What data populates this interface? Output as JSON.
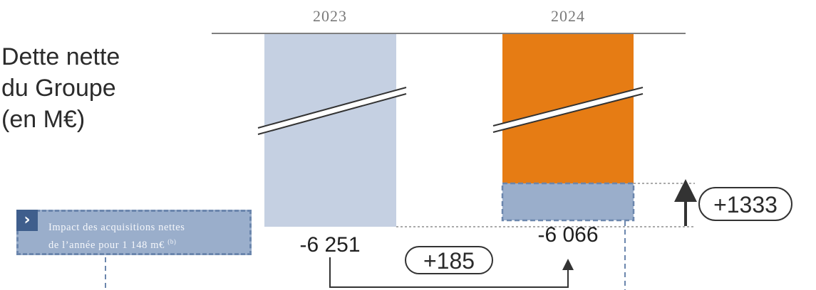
{
  "title_lines": [
    "Dette nette",
    "du Groupe",
    "(en M€)"
  ],
  "note": {
    "icon": "chevron-right-icon",
    "line1": "Impact des acquisitions nettes",
    "line2": "de l’année pour 1 148 m€",
    "footnote": "(b)"
  },
  "colors": {
    "bar_2023": "#c5d0e2",
    "bar_2024": "#e67c14",
    "acquisition_segment": "#9aaecb",
    "acquisition_border": "#6b86ad",
    "axis": "#7f7f7f",
    "arrow": "#333333"
  },
  "chart_data": {
    "type": "bar",
    "categories": [
      "2023",
      "2024"
    ],
    "values": [
      -6251,
      -6066
    ],
    "value_labels": [
      "-6 251",
      "-6 066"
    ],
    "broken_axis": true,
    "annotations": {
      "change_between_years": "+185",
      "change_2024_vs_acquisitions": "+1333"
    },
    "acquisitions_impact_2024": 1148
  }
}
